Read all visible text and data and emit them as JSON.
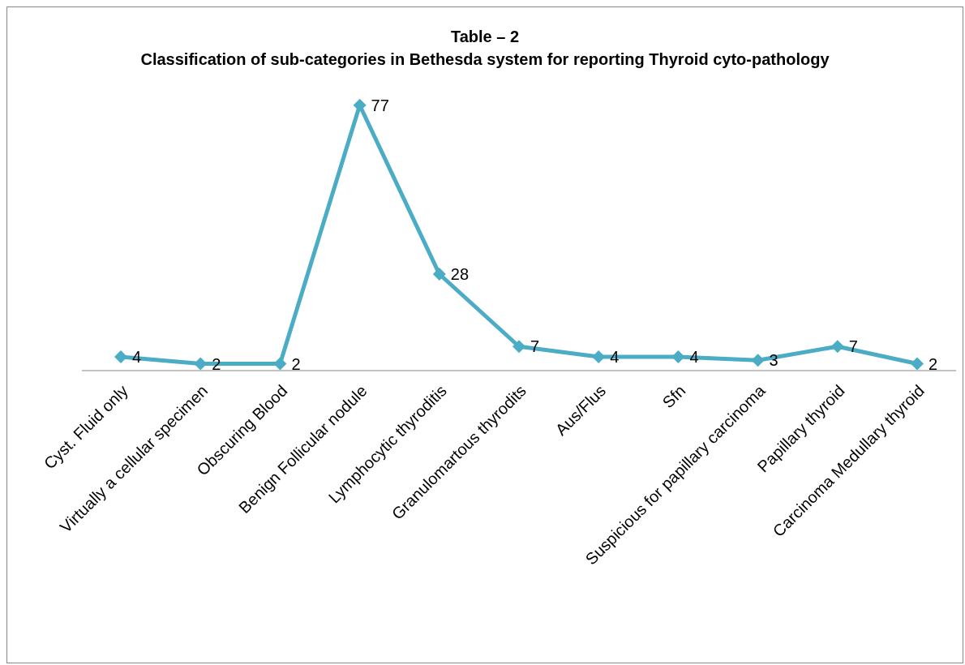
{
  "chart_data": {
    "type": "line",
    "title": "Table – 2",
    "subtitle": "Classification of sub-categories in Bethesda system for reporting Thyroid cyto-pathology",
    "categories": [
      "Cyst. Fluid only",
      "Virtually a cellular specimen",
      "Obscuring Blood",
      "Benign Follicular nodule",
      "Lymphocytic thyroditis",
      "Granulomartous thyrodits",
      "Aus/Flus",
      "Sfn",
      "Suspicious for papillary carcinoma",
      "Papillary thyroid",
      "Carcinoma Medullary thyroid"
    ],
    "series": [
      {
        "color": "#4bacc6",
        "values": [
          4,
          2,
          2,
          77,
          28,
          7,
          4,
          4,
          3,
          7,
          2
        ]
      }
    ],
    "data_labels": true,
    "marker": "diamond",
    "line_style": "solid",
    "grid": false,
    "legend": false,
    "tick_labels": "x"
  }
}
